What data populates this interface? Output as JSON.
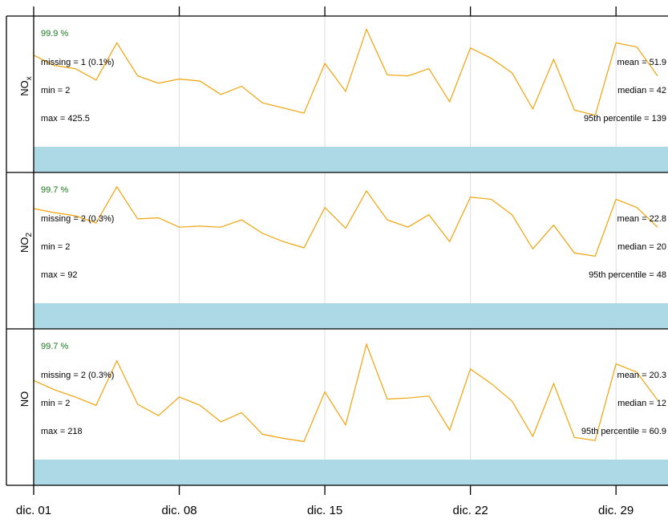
{
  "chart_data": {
    "type": "line",
    "x_ticks": [
      "dic. 01",
      "dic. 08",
      "dic. 15",
      "dic. 22",
      "dic. 29"
    ],
    "x_tick_days": [
      1,
      8,
      15,
      22,
      29
    ],
    "xlim_days": [
      1,
      31.5
    ],
    "grid": "vertical",
    "colors": {
      "line": "#f0a30a",
      "pct": "#1a7a1a",
      "strip": "#add8e6",
      "grid": "#dcdcdc",
      "frame": "#000000"
    },
    "panels": [
      {
        "label_main": "NO",
        "label_sub": "x",
        "pct": "99.9 %",
        "missing": "missing = 1 (0.1%)",
        "min": "min = 2",
        "max": "max = 425.5",
        "mean": "mean = 51.9",
        "median": "median = 42",
        "p95": "95th percentile = 139",
        "ylim": [
          0,
          1
        ],
        "x": [
          1,
          2,
          3,
          4,
          5,
          6,
          7,
          8,
          9,
          10,
          11,
          12,
          13,
          14,
          15,
          16,
          17,
          18,
          19,
          20,
          21,
          22,
          23,
          24,
          25,
          26,
          27,
          28,
          29,
          30,
          31
        ],
        "y": [
          0.73,
          0.63,
          0.6,
          0.49,
          0.85,
          0.53,
          0.46,
          0.5,
          0.48,
          0.35,
          0.43,
          0.27,
          0.22,
          0.17,
          0.65,
          0.38,
          0.98,
          0.54,
          0.53,
          0.6,
          0.28,
          0.8,
          0.7,
          0.56,
          0.21,
          0.69,
          0.2,
          0.15,
          0.85,
          0.81,
          0.53
        ]
      },
      {
        "label_main": "NO",
        "label_sub": "2",
        "pct": "99.7 %",
        "missing": "missing = 2 (0.3%)",
        "min": "min = 2",
        "max": "max = 92",
        "mean": "mean = 22.8",
        "median": "median = 20",
        "p95": "95th percentile = 48",
        "ylim": [
          0,
          1
        ],
        "x": [
          1,
          2,
          3,
          4,
          5,
          6,
          7,
          8,
          9,
          10,
          11,
          12,
          13,
          14,
          15,
          16,
          17,
          18,
          19,
          20,
          21,
          22,
          23,
          24,
          25,
          26,
          27,
          28,
          29,
          30,
          31
        ],
        "y": [
          0.76,
          0.72,
          0.69,
          0.62,
          0.97,
          0.66,
          0.67,
          0.58,
          0.59,
          0.58,
          0.65,
          0.52,
          0.44,
          0.38,
          0.77,
          0.57,
          0.93,
          0.65,
          0.58,
          0.7,
          0.44,
          0.87,
          0.85,
          0.7,
          0.37,
          0.6,
          0.33,
          0.3,
          0.85,
          0.77,
          0.58
        ]
      },
      {
        "label_main": "NO",
        "label_sub": "",
        "pct": "99.7 %",
        "missing": "missing = 2 (0.3%)",
        "min": "min = 2",
        "max": "max = 218",
        "mean": "mean = 20.3",
        "median": "median = 12",
        "p95": "95th percentile = 60.9",
        "ylim": [
          0,
          1
        ],
        "x": [
          1,
          2,
          3,
          4,
          5,
          6,
          7,
          8,
          9,
          10,
          11,
          12,
          13,
          14,
          15,
          16,
          17,
          18,
          19,
          20,
          21,
          22,
          23,
          24,
          25,
          26,
          27,
          28,
          29,
          30,
          31
        ],
        "y": [
          0.61,
          0.52,
          0.45,
          0.37,
          0.8,
          0.38,
          0.27,
          0.45,
          0.37,
          0.21,
          0.3,
          0.09,
          0.05,
          0.02,
          0.5,
          0.18,
          0.96,
          0.43,
          0.44,
          0.46,
          0.13,
          0.72,
          0.58,
          0.41,
          0.07,
          0.58,
          0.06,
          0.03,
          0.77,
          0.69,
          0.42
        ]
      }
    ]
  }
}
